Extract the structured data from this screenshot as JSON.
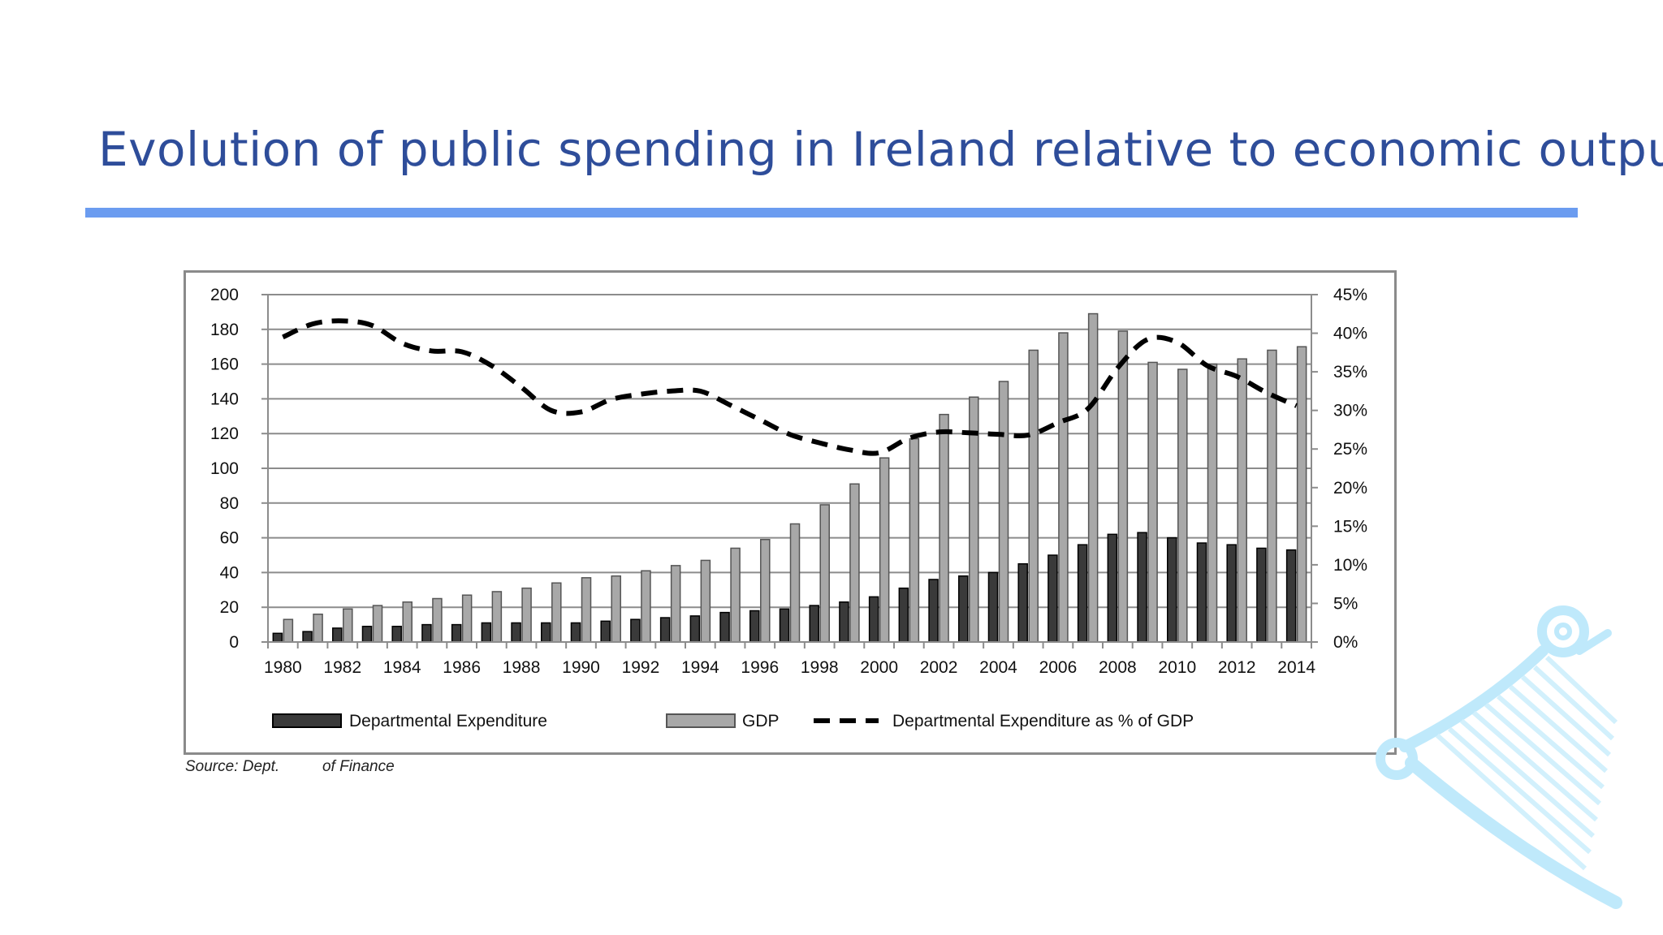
{
  "slide": {
    "title": "Evolution of public spending in Ireland relative to economic output",
    "source_prefix": "Source: Dept.",
    "source_suffix": "of Finance"
  },
  "colors": {
    "title": "#2e4d9a",
    "rule": "#6b9cf0",
    "expenditure_bar": "#3a3a3a",
    "gdp_bar": "#a8a8a8",
    "ratio_line": "#000000",
    "harp": "#bfe9fb"
  },
  "chart_data": {
    "type": "bar",
    "categories": [
      "1980",
      "1981",
      "1982",
      "1983",
      "1984",
      "1985",
      "1986",
      "1987",
      "1988",
      "1989",
      "1990",
      "1991",
      "1992",
      "1993",
      "1994",
      "1995",
      "1996",
      "1997",
      "1998",
      "1999",
      "2000",
      "2001",
      "2002",
      "2003",
      "2004",
      "2005",
      "2006",
      "2007",
      "2008",
      "2009",
      "2010",
      "2011",
      "2012",
      "2013",
      "2014"
    ],
    "x_tick_labels": [
      "1980",
      "1982",
      "1984",
      "1986",
      "1988",
      "1990",
      "1992",
      "1994",
      "1996",
      "1998",
      "2000",
      "2002",
      "2004",
      "2006",
      "2008",
      "2010",
      "2012",
      "2014"
    ],
    "series": [
      {
        "name": "Departmental Expenditure",
        "kind": "bar",
        "axis": "left",
        "values": [
          5,
          6,
          8,
          9,
          9,
          10,
          10,
          11,
          11,
          11,
          11,
          12,
          13,
          14,
          15,
          17,
          18,
          19,
          21,
          23,
          26,
          31,
          36,
          38,
          40,
          45,
          50,
          56,
          62,
          63,
          60,
          57,
          56,
          54,
          53
        ]
      },
      {
        "name": "GDP",
        "kind": "bar",
        "axis": "left",
        "values": [
          13,
          16,
          19,
          21,
          23,
          25,
          27,
          29,
          31,
          34,
          37,
          38,
          41,
          44,
          47,
          54,
          59,
          68,
          79,
          91,
          106,
          117,
          131,
          141,
          150,
          168,
          178,
          189,
          179,
          161,
          157,
          160,
          163,
          168,
          170
        ]
      },
      {
        "name": "Departmental Expenditure as % of GDP",
        "kind": "line",
        "style": "dashed",
        "axis": "right",
        "values": [
          39.5,
          41.2,
          41.6,
          41.0,
          38.7,
          37.7,
          37.6,
          35.8,
          33.0,
          30.0,
          29.8,
          31.4,
          32.1,
          32.5,
          32.5,
          30.7,
          28.8,
          26.9,
          25.8,
          24.9,
          24.5,
          26.4,
          27.2,
          27.1,
          26.9,
          26.8,
          28.4,
          30.2,
          35.5,
          39.2,
          38.8,
          35.8,
          34.4,
          32.3,
          30.6
        ]
      }
    ],
    "y_left": {
      "ticks": [
        0,
        20,
        40,
        60,
        80,
        100,
        120,
        140,
        160,
        180,
        200
      ],
      "ylim": [
        0,
        200
      ]
    },
    "y_right": {
      "ticks": [
        "0%",
        "5%",
        "10%",
        "15%",
        "20%",
        "25%",
        "30%",
        "35%",
        "40%",
        "45%"
      ],
      "ylim": [
        0,
        45
      ]
    },
    "grid": true,
    "legend_position": "bottom"
  }
}
